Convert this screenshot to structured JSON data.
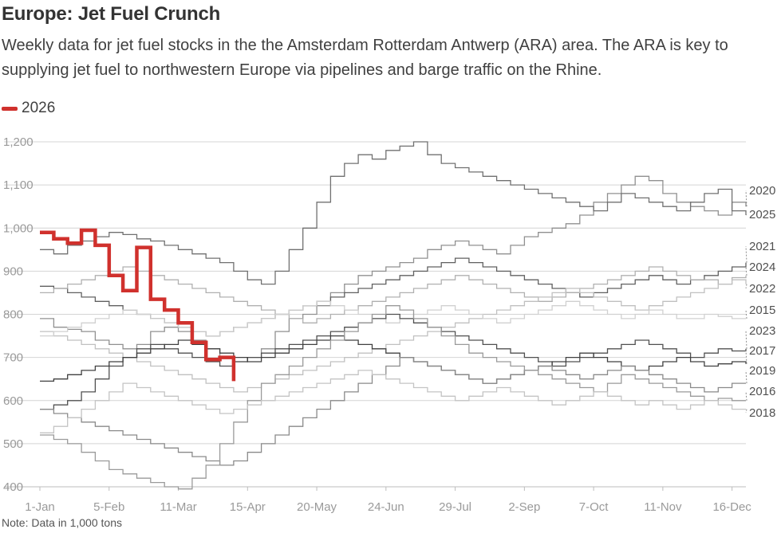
{
  "header": {
    "title": "Europe: Jet Fuel Crunch",
    "subtitle": "Weekly data for jet fuel stocks in the the Amsterdam Rotterdam Antwerp (ARA) area. The ARA is key to supplying jet fuel to northwestern Europe via pipelines and barge traffic on the Rhine."
  },
  "legend": {
    "label": "2026",
    "color": "#d0312d"
  },
  "footer": {
    "note": "Note: Data in 1,000 tons"
  },
  "chart_data": {
    "type": "line",
    "title": "Europe: Jet Fuel Crunch",
    "xlabel": "",
    "ylabel": "",
    "ylim": [
      400,
      1200
    ],
    "y_ticks": [
      400,
      500,
      600,
      700,
      800,
      900,
      1000,
      1100,
      1200
    ],
    "y_tick_labels": [
      "400",
      "500",
      "600",
      "700",
      "800",
      "900",
      "1,000",
      "1,100",
      "1,200"
    ],
    "x_range": [
      1,
      52
    ],
    "x_ticks": [
      1,
      6,
      11,
      16,
      21,
      26,
      31,
      36,
      41,
      46,
      51
    ],
    "x_tick_labels": [
      "1-Jan",
      "5-Feb",
      "11-Mar",
      "15-Apr",
      "20-May",
      "24-Jun",
      "29-Jul",
      "2-Sep",
      "7-Oct",
      "11-Nov",
      "16-Dec"
    ],
    "grid": true,
    "legend_position": "top-left",
    "highlight_series": "2026",
    "series": [
      {
        "name": "2026",
        "color": "#d0312d",
        "highlight": true,
        "values": [
          990,
          975,
          965,
          995,
          960,
          890,
          855,
          955,
          835,
          810,
          780,
          735,
          695,
          700,
          645
        ]
      },
      {
        "name": "2020",
        "color": "#909090",
        "values": [
          790,
          770,
          765,
          760,
          740,
          730,
          720,
          730,
          760,
          770,
          760,
          740,
          720,
          700,
          690,
          700,
          720,
          760,
          790,
          800,
          820,
          850,
          870,
          890,
          900,
          910,
          920,
          930,
          950,
          960,
          970,
          960,
          950,
          940,
          960,
          980,
          990,
          1000,
          1010,
          1030,
          1060,
          1080,
          1100,
          1120,
          1110,
          1080,
          1060,
          1050,
          1040,
          1030,
          1060,
          1050
        ]
      },
      {
        "name": "2025",
        "color": "#707070",
        "values": [
          950,
          940,
          960,
          970,
          980,
          990,
          985,
          975,
          970,
          960,
          950,
          940,
          930,
          920,
          900,
          880,
          870,
          900,
          950,
          1000,
          1060,
          1120,
          1150,
          1170,
          1160,
          1180,
          1190,
          1200,
          1170,
          1150,
          1140,
          1130,
          1120,
          1110,
          1100,
          1090,
          1080,
          1070,
          1060,
          1050,
          1040,
          1060,
          1080,
          1070,
          1060,
          1050,
          1040,
          1060,
          1080,
          1090,
          1040,
          1030
        ]
      },
      {
        "name": "2021",
        "color": "#606060",
        "values": [
          865,
          860,
          850,
          840,
          830,
          820,
          810,
          800,
          790,
          780,
          770,
          760,
          750,
          760,
          770,
          780,
          790,
          800,
          810,
          820,
          830,
          840,
          850,
          860,
          870,
          880,
          890,
          900,
          910,
          920,
          930,
          920,
          910,
          900,
          890,
          880,
          870,
          860,
          850,
          840,
          850,
          860,
          870,
          880,
          890,
          880,
          870,
          880,
          890,
          900,
          910,
          920
        ]
      },
      {
        "name": "2024",
        "color": "#b0b0b0",
        "values": [
          850,
          860,
          870,
          880,
          890,
          900,
          910,
          900,
          890,
          880,
          870,
          860,
          850,
          840,
          830,
          820,
          810,
          800,
          790,
          780,
          790,
          800,
          810,
          820,
          830,
          840,
          850,
          860,
          870,
          880,
          890,
          880,
          870,
          860,
          850,
          840,
          830,
          840,
          850,
          860,
          870,
          880,
          890,
          900,
          910,
          900,
          890,
          880,
          880,
          870,
          885,
          890
        ]
      },
      {
        "name": "2022",
        "color": "#c0c0c0",
        "values": [
          760,
          750,
          740,
          730,
          720,
          710,
          700,
          690,
          680,
          670,
          660,
          650,
          640,
          630,
          620,
          630,
          640,
          650,
          660,
          670,
          680,
          690,
          700,
          710,
          720,
          730,
          740,
          750,
          760,
          770,
          780,
          790,
          800,
          810,
          820,
          830,
          840,
          850,
          860,
          850,
          840,
          830,
          820,
          810,
          820,
          830,
          840,
          850,
          860,
          870,
          880,
          870
        ]
      },
      {
        "name": "2015",
        "color": "#d0d0d0",
        "values": [
          750,
          760,
          770,
          780,
          790,
          800,
          810,
          800,
          790,
          780,
          770,
          760,
          750,
          760,
          770,
          780,
          790,
          800,
          810,
          820,
          830,
          820,
          810,
          800,
          790,
          780,
          790,
          800,
          810,
          820,
          810,
          800,
          790,
          780,
          790,
          800,
          810,
          820,
          830,
          820,
          810,
          800,
          790,
          800,
          810,
          800,
          790,
          790,
          800,
          795,
          790,
          790
        ]
      },
      {
        "name": "2023",
        "color": "#505050",
        "values": [
          580,
          590,
          600,
          620,
          650,
          680,
          700,
          720,
          730,
          720,
          710,
          700,
          690,
          680,
          690,
          700,
          710,
          720,
          730,
          740,
          750,
          760,
          770,
          780,
          790,
          800,
          790,
          780,
          770,
          760,
          750,
          740,
          730,
          720,
          710,
          700,
          690,
          680,
          690,
          700,
          710,
          720,
          730,
          740,
          730,
          720,
          710,
          700,
          710,
          720,
          715,
          720
        ]
      },
      {
        "name": "2017",
        "color": "#404040",
        "values": [
          645,
          650,
          660,
          670,
          680,
          690,
          700,
          710,
          720,
          730,
          740,
          730,
          720,
          710,
          700,
          690,
          700,
          710,
          720,
          730,
          740,
          750,
          740,
          730,
          720,
          710,
          700,
          690,
          680,
          670,
          660,
          650,
          640,
          650,
          660,
          670,
          680,
          690,
          700,
          710,
          700,
          690,
          680,
          670,
          680,
          690,
          700,
          690,
          680,
          685,
          690,
          685
        ]
      },
      {
        "name": "2019",
        "color": "#8a8a8a",
        "values": [
          580,
          570,
          560,
          550,
          540,
          530,
          520,
          510,
          500,
          490,
          480,
          470,
          460,
          450,
          460,
          480,
          500,
          520,
          540,
          560,
          580,
          600,
          620,
          640,
          660,
          680,
          700,
          690,
          680,
          670,
          660,
          650,
          640,
          650,
          660,
          670,
          680,
          670,
          660,
          650,
          660,
          670,
          680,
          670,
          660,
          650,
          640,
          630,
          620,
          630,
          640,
          640
        ]
      },
      {
        "name": "2016",
        "color": "#9a9a9a",
        "values": [
          520,
          510,
          500,
          480,
          460,
          440,
          430,
          420,
          410,
          400,
          395,
          420,
          450,
          500,
          550,
          600,
          640,
          660,
          680,
          700,
          720,
          740,
          760,
          780,
          800,
          820,
          810,
          790,
          770,
          750,
          730,
          710,
          700,
          690,
          680,
          670,
          660,
          650,
          640,
          630,
          620,
          640,
          660,
          650,
          640,
          630,
          620,
          610,
          600,
          605,
          600,
          600
        ]
      },
      {
        "name": "2018",
        "color": "#c4c4c4",
        "values": [
          525,
          540,
          560,
          580,
          600,
          620,
          640,
          630,
          620,
          610,
          600,
          590,
          580,
          570,
          580,
          590,
          600,
          610,
          620,
          630,
          640,
          650,
          660,
          670,
          660,
          650,
          640,
          630,
          620,
          610,
          600,
          610,
          620,
          630,
          620,
          610,
          600,
          590,
          600,
          610,
          620,
          610,
          600,
          590,
          600,
          590,
          580,
          590,
          600,
          590,
          580,
          580
        ]
      }
    ],
    "end_labels": [
      "2020",
      "2025",
      "2021",
      "2024",
      "2022",
      "2015",
      "2023",
      "2017",
      "2019",
      "2016",
      "2018"
    ]
  }
}
